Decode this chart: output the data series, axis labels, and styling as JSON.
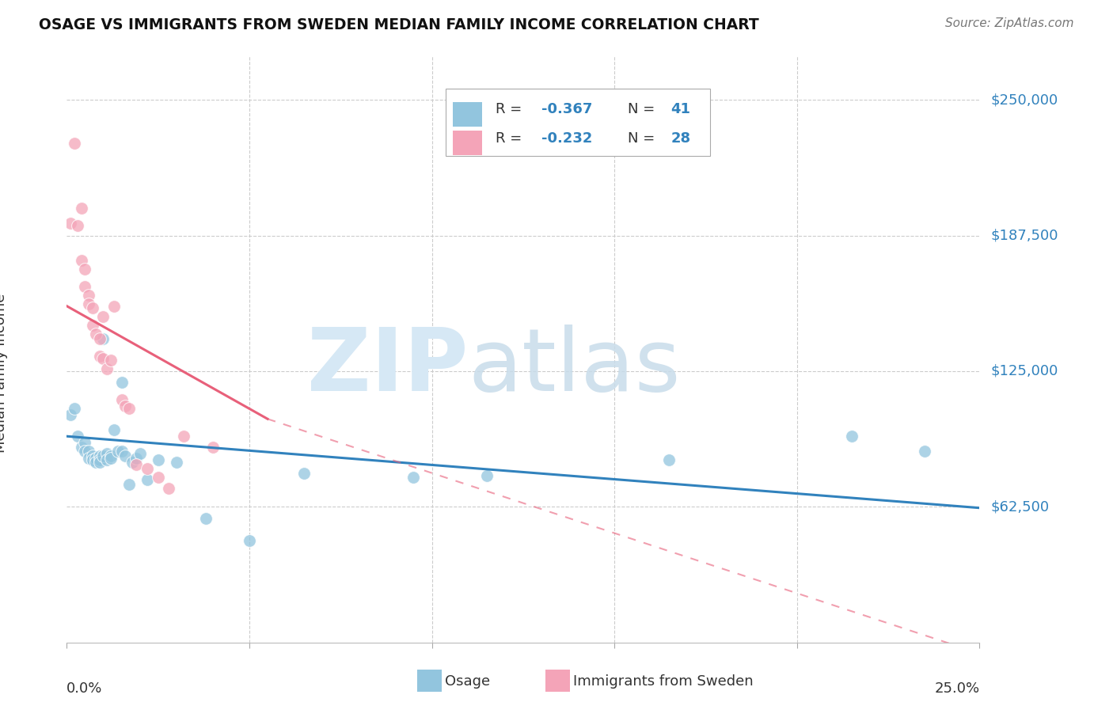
{
  "title": "OSAGE VS IMMIGRANTS FROM SWEDEN MEDIAN FAMILY INCOME CORRELATION CHART",
  "source": "Source: ZipAtlas.com",
  "ylabel": "Median Family Income",
  "yticks": [
    0,
    62500,
    125000,
    187500,
    250000
  ],
  "ytick_labels": [
    "",
    "$62,500",
    "$125,000",
    "$187,500",
    "$250,000"
  ],
  "xmin": 0.0,
  "xmax": 0.25,
  "ymin": 0,
  "ymax": 270000,
  "color_blue": "#92c5de",
  "color_pink": "#f4a4b8",
  "color_blue_dark": "#3182bd",
  "color_pink_dark": "#e8607a",
  "osage_x": [
    0.001,
    0.002,
    0.003,
    0.004,
    0.005,
    0.005,
    0.006,
    0.006,
    0.007,
    0.007,
    0.008,
    0.008,
    0.009,
    0.009,
    0.009,
    0.01,
    0.01,
    0.011,
    0.011,
    0.012,
    0.012,
    0.013,
    0.014,
    0.015,
    0.015,
    0.016,
    0.017,
    0.018,
    0.019,
    0.02,
    0.022,
    0.025,
    0.03,
    0.038,
    0.05,
    0.065,
    0.095,
    0.115,
    0.165,
    0.215,
    0.235
  ],
  "osage_y": [
    105000,
    108000,
    95000,
    90000,
    92000,
    88000,
    88000,
    85000,
    86000,
    84000,
    85000,
    83000,
    86000,
    84000,
    83000,
    140000,
    86000,
    87000,
    84000,
    86000,
    85000,
    98000,
    88000,
    120000,
    88000,
    86000,
    73000,
    83000,
    85000,
    87000,
    75000,
    84000,
    83000,
    57000,
    47000,
    78000,
    76000,
    77000,
    84000,
    95000,
    88000
  ],
  "sweden_x": [
    0.001,
    0.002,
    0.003,
    0.004,
    0.004,
    0.005,
    0.005,
    0.006,
    0.006,
    0.007,
    0.007,
    0.008,
    0.009,
    0.009,
    0.01,
    0.01,
    0.011,
    0.012,
    0.013,
    0.015,
    0.016,
    0.017,
    0.019,
    0.022,
    0.025,
    0.028,
    0.032,
    0.04
  ],
  "sweden_y": [
    193000,
    230000,
    192000,
    200000,
    176000,
    172000,
    164000,
    160000,
    156000,
    154000,
    146000,
    142000,
    140000,
    132000,
    150000,
    131000,
    126000,
    130000,
    155000,
    112000,
    109000,
    108000,
    82000,
    80000,
    76000,
    71000,
    95000,
    90000
  ],
  "trend_blue_x0": 0.0,
  "trend_blue_y0": 95000,
  "trend_blue_x1": 0.25,
  "trend_blue_y1": 62000,
  "trend_pink_solid_x0": 0.0,
  "trend_pink_solid_y0": 155000,
  "trend_pink_solid_x1": 0.055,
  "trend_pink_solid_y1": 103000,
  "trend_pink_dash_x0": 0.055,
  "trend_pink_dash_y0": 103000,
  "trend_pink_dash_x1": 0.25,
  "trend_pink_dash_y1": -5000
}
